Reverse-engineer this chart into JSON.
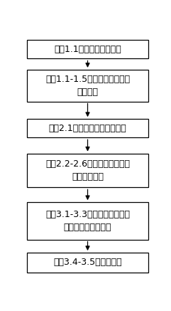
{
  "box_texts": [
    "步骤1.1：获取单线图拓扑",
    "步骤1.1-1.5：对单线图进行简\n化并命名",
    "步骤2.1：确定配电网潮流方向",
    "步骤2.2-2.6：将线路段按照诊\n断准确率分类",
    "步骤3.1-3.3：制定线路段单相\n断线故障诊断规则集",
    "步骤3.4-3.5：故障定位"
  ],
  "box_color": "#ffffff",
  "border_color": "#000000",
  "arrow_color": "#000000",
  "background_color": "#ffffff",
  "font_size": 9.0,
  "fig_width": 2.41,
  "fig_height": 4.37,
  "dpi": 100
}
